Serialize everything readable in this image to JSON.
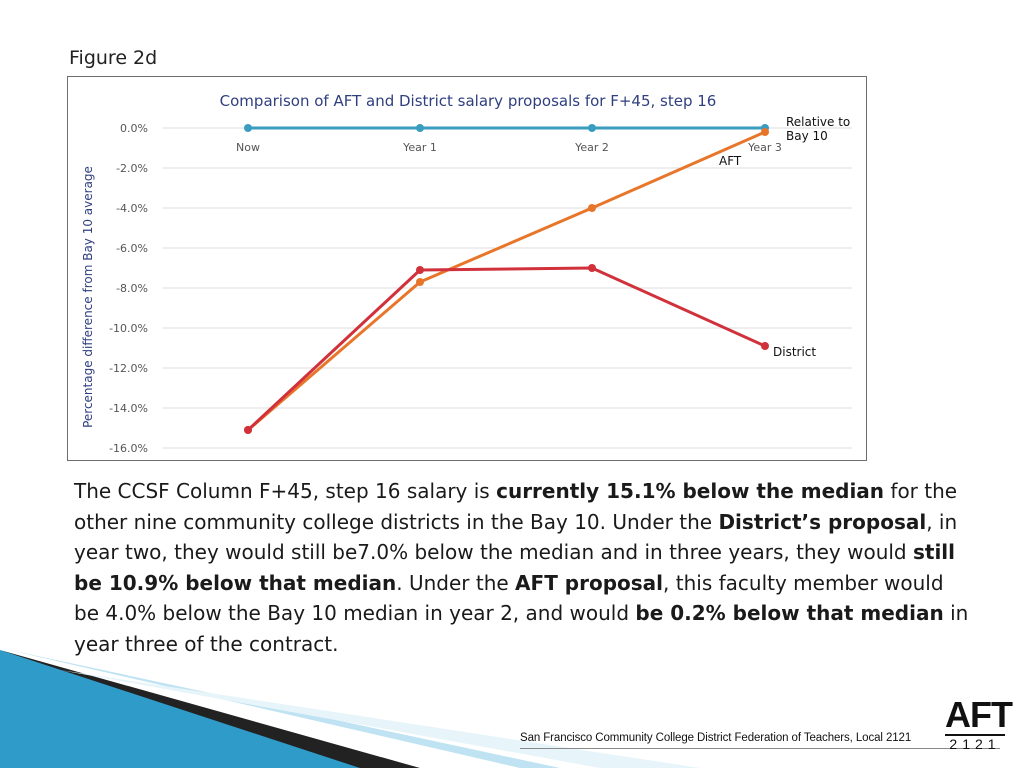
{
  "figure_label": "Figure 2d",
  "chart_data": {
    "type": "line",
    "title": "Comparison of AFT and District salary proposals for F+45, step 16",
    "ylabel": "Percentage difference from Bay 10 average",
    "xlabel": "",
    "categories": [
      "Now",
      "Year 1",
      "Year 2",
      "Year 3"
    ],
    "ylim": [
      -16,
      0
    ],
    "yticks": [
      "0.0%",
      "-2.0%",
      "-4.0%",
      "-6.0%",
      "-8.0%",
      "-10.0%",
      "-12.0%",
      "-14.0%",
      "-16.0%"
    ],
    "ytick_values": [
      0,
      -2,
      -4,
      -6,
      -8,
      -10,
      -12,
      -14,
      -16
    ],
    "grid": true,
    "series": [
      {
        "name": "Relative to Bay 10",
        "label_lines": [
          "Relative to",
          "Bay 10"
        ],
        "color": "#3a9dbf",
        "values": [
          0,
          0,
          0,
          0
        ]
      },
      {
        "name": "AFT",
        "label_lines": [
          "AFT"
        ],
        "color": "#e8762a",
        "values": [
          -15.1,
          -7.7,
          -4.0,
          -0.2
        ]
      },
      {
        "name": "District",
        "label_lines": [
          "District"
        ],
        "color": "#d0313b",
        "values": [
          -15.1,
          -7.1,
          -7.0,
          -10.9
        ]
      }
    ]
  },
  "paragraph": [
    {
      "text": "The CCSF Column F+45, step 16 salary is ",
      "bold": false
    },
    {
      "text": "currently 15.1% below the median",
      "bold": true
    },
    {
      "text": " for the other nine community college districts in the Bay 10. Under the ",
      "bold": false
    },
    {
      "text": "District’s proposal",
      "bold": true
    },
    {
      "text": ", in year two, they would still be7.0% below the median and in three years, they would ",
      "bold": false
    },
    {
      "text": "still be 10.9% below that median",
      "bold": true
    },
    {
      "text": ". Under the ",
      "bold": false
    },
    {
      "text": "AFT proposal",
      "bold": true
    },
    {
      "text": ", this faculty member would be 4.0% below the Bay 10 median in year 2, and would ",
      "bold": false
    },
    {
      "text": "be 0.2% below that median",
      "bold": true
    },
    {
      "text": " in year three of the contract.",
      "bold": false
    }
  ],
  "footer": {
    "org_text": "San Francisco Community College District Federation of Teachers, Local 2121",
    "logo_top": "AFT",
    "logo_bottom": "2121"
  }
}
